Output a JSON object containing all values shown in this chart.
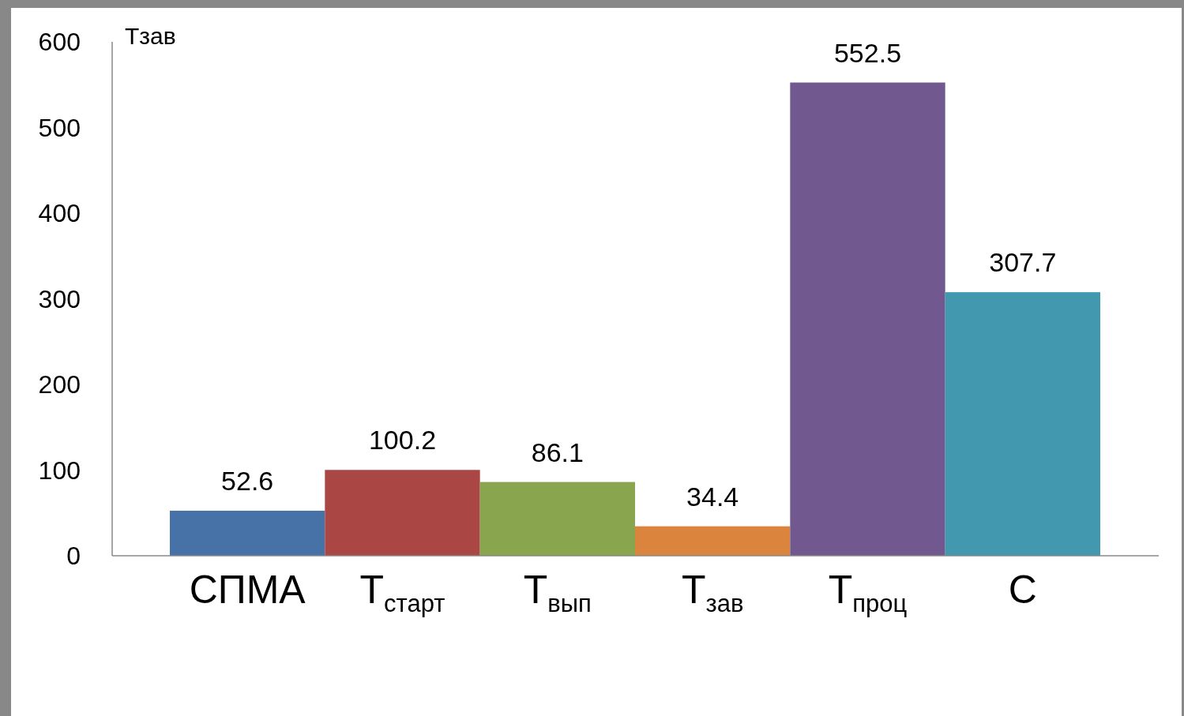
{
  "chart_data": {
    "type": "bar",
    "ylabel": "Tзав",
    "categories": [
      "СПМА",
      "T$_{старт}$",
      "T$_{вып}$",
      "T$_{зав}$",
      "T$_{проц}$",
      "C"
    ],
    "values": [
      52.6,
      100.2,
      86.1,
      34.4,
      552.5,
      307.7
    ],
    "colors": [
      "#4672a8",
      "#aa4644",
      "#89a54e",
      "#db843d",
      "#71588f",
      "#4198af"
    ],
    "ylim": [
      0,
      600
    ],
    "yticks": [
      0,
      100,
      200,
      300,
      400,
      500,
      600
    ],
    "data_labels": true,
    "grid": false
  }
}
